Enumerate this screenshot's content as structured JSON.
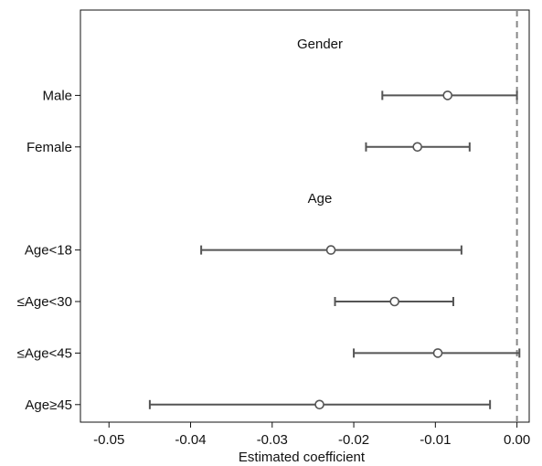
{
  "chart_data": {
    "type": "forest",
    "xlabel": "Estimated coefficient",
    "xlim": [
      -0.0535,
      0.0015
    ],
    "x_ticks": [
      {
        "value": -0.05,
        "label": "-0.05"
      },
      {
        "value": -0.04,
        "label": "-0.04"
      },
      {
        "value": -0.03,
        "label": "-0.03"
      },
      {
        "value": -0.02,
        "label": "-0.02"
      },
      {
        "value": -0.01,
        "label": "-0.01"
      },
      {
        "value": 0.0,
        "label": "0.00"
      }
    ],
    "reference_line": {
      "x": 0.0,
      "style": "dashed"
    },
    "grid": false,
    "groups": [
      {
        "label": "Gender",
        "rows": [
          {
            "label": "Male",
            "estimate": -0.0085,
            "lower": -0.0165,
            "upper": 0.0
          },
          {
            "label": "Female",
            "estimate": -0.0122,
            "lower": -0.0185,
            "upper": -0.0058
          }
        ]
      },
      {
        "label": "Age",
        "rows": [
          {
            "label": "Age<18",
            "estimate": -0.0228,
            "lower": -0.0387,
            "upper": -0.0068
          },
          {
            "label": "≤Age<30",
            "estimate": -0.015,
            "lower": -0.0223,
            "upper": -0.0078
          },
          {
            "label": "≤Age<45",
            "estimate": -0.0097,
            "lower": -0.02,
            "upper": 0.0003
          },
          {
            "label": "Age≥45",
            "estimate": -0.0242,
            "lower": -0.045,
            "upper": -0.0033
          }
        ]
      }
    ]
  }
}
